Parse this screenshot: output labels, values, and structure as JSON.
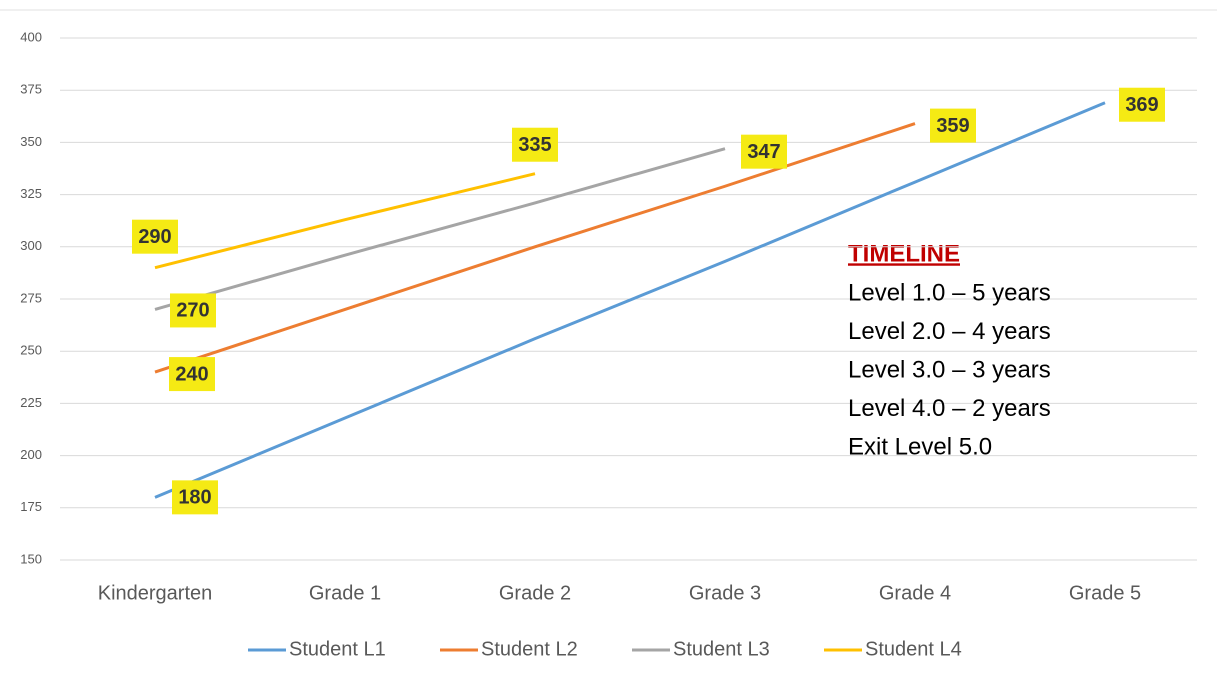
{
  "chart_data": {
    "type": "line",
    "categories": [
      "Kindergarten",
      "Grade 1",
      "Grade 2",
      "Grade 3",
      "Grade 4",
      "Grade 5"
    ],
    "series": [
      {
        "name": "Student L1",
        "color": "#5b9bd5",
        "values": [
          180,
          218,
          256,
          293,
          331,
          369
        ]
      },
      {
        "name": "Student L2",
        "color": "#ed7d31",
        "values": [
          240,
          270,
          300,
          329,
          359,
          null
        ]
      },
      {
        "name": "Student L3",
        "color": "#a5a5a5",
        "values": [
          270,
          296,
          321,
          347,
          null,
          null
        ]
      },
      {
        "name": "Student L4",
        "color": "#ffc000",
        "values": [
          290,
          313,
          335,
          null,
          null,
          null
        ]
      }
    ],
    "ylim": [
      150,
      400
    ],
    "yticks": [
      150,
      175,
      200,
      225,
      250,
      275,
      300,
      325,
      350,
      375,
      400
    ],
    "grid": true,
    "legend": "bottom",
    "annotation": {
      "title": "TIMELINE",
      "lines": [
        "Level 1.0 – 5 years",
        "Level 2.0 – 4 years",
        "Level 3.0 – 3 years",
        "Level 4.0 – 2 years",
        "Exit Level 5.0"
      ]
    }
  }
}
